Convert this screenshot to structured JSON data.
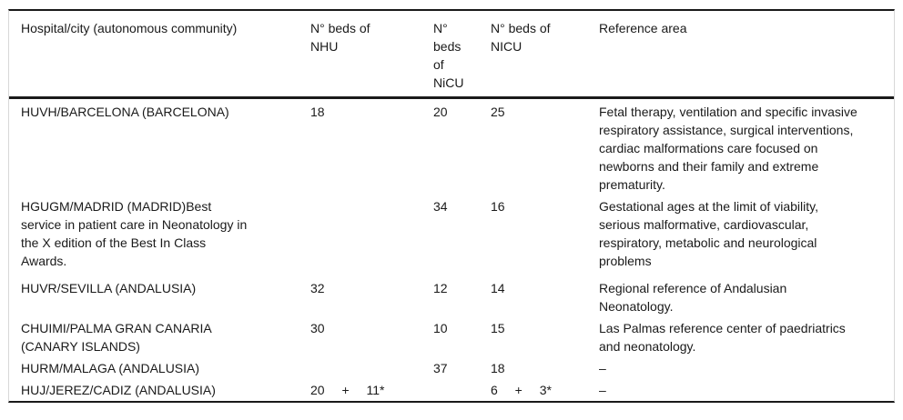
{
  "colors": {
    "background": "#ffffff",
    "text": "#1a1a1a",
    "rule": "#1a1a1a",
    "side_rail": "#d8d8d8"
  },
  "table": {
    "columns": [
      {
        "label": "Hospital/city (autonomous community)"
      },
      {
        "label": "N° beds of NHU"
      },
      {
        "label": "N° beds of NiCU"
      },
      {
        "label": "N° beds of NICU"
      },
      {
        "label": "Reference area"
      }
    ],
    "rows": [
      {
        "hospital": "HUVH/BARCELONA (BARCELONA)",
        "nhu": "18",
        "nicu_intermediate": "20",
        "nicu_intensive": "25",
        "reference": "Fetal therapy, ventilation and specific invasive respiratory assistance, surgical interventions, cardiac malformations care focused on newborns and their family and extreme prematurity."
      },
      {
        "hospital": "HGUGM/MADRID (MADRID)Best service in patient care in Neonatology in the X edition of the Best In Class Awards.",
        "nhu": "",
        "nicu_intermediate": "34",
        "nicu_intensive": "16",
        "reference": "Gestational ages at the limit of viability, serious malformative, cardiovascular, respiratory, metabolic and neurological problems"
      },
      {
        "hospital": "HUVR/SEVILLA (ANDALUSIA)",
        "nhu": "32",
        "nicu_intermediate": "12",
        "nicu_intensive": "14",
        "reference": "Regional reference of Andalusian Neonatology."
      },
      {
        "hospital": "CHUIMI/PALMA GRAN CANARIA (CANARY ISLANDS)",
        "nhu": "30",
        "nicu_intermediate": "10",
        "nicu_intensive": "15",
        "reference": "Las Palmas reference center of paedriatrics and neonatology."
      },
      {
        "hospital": "HURM/MALAGA (ANDALUSIA)",
        "nhu": "",
        "nicu_intermediate": "37",
        "nicu_intensive": "18",
        "reference": "–"
      },
      {
        "hospital": "HUJ/JEREZ/CADIZ (ANDALUSIA)",
        "nhu": "20 + 11*",
        "nicu_intermediate": "",
        "nicu_intensive": "6 + 3*",
        "reference": "–"
      }
    ]
  }
}
